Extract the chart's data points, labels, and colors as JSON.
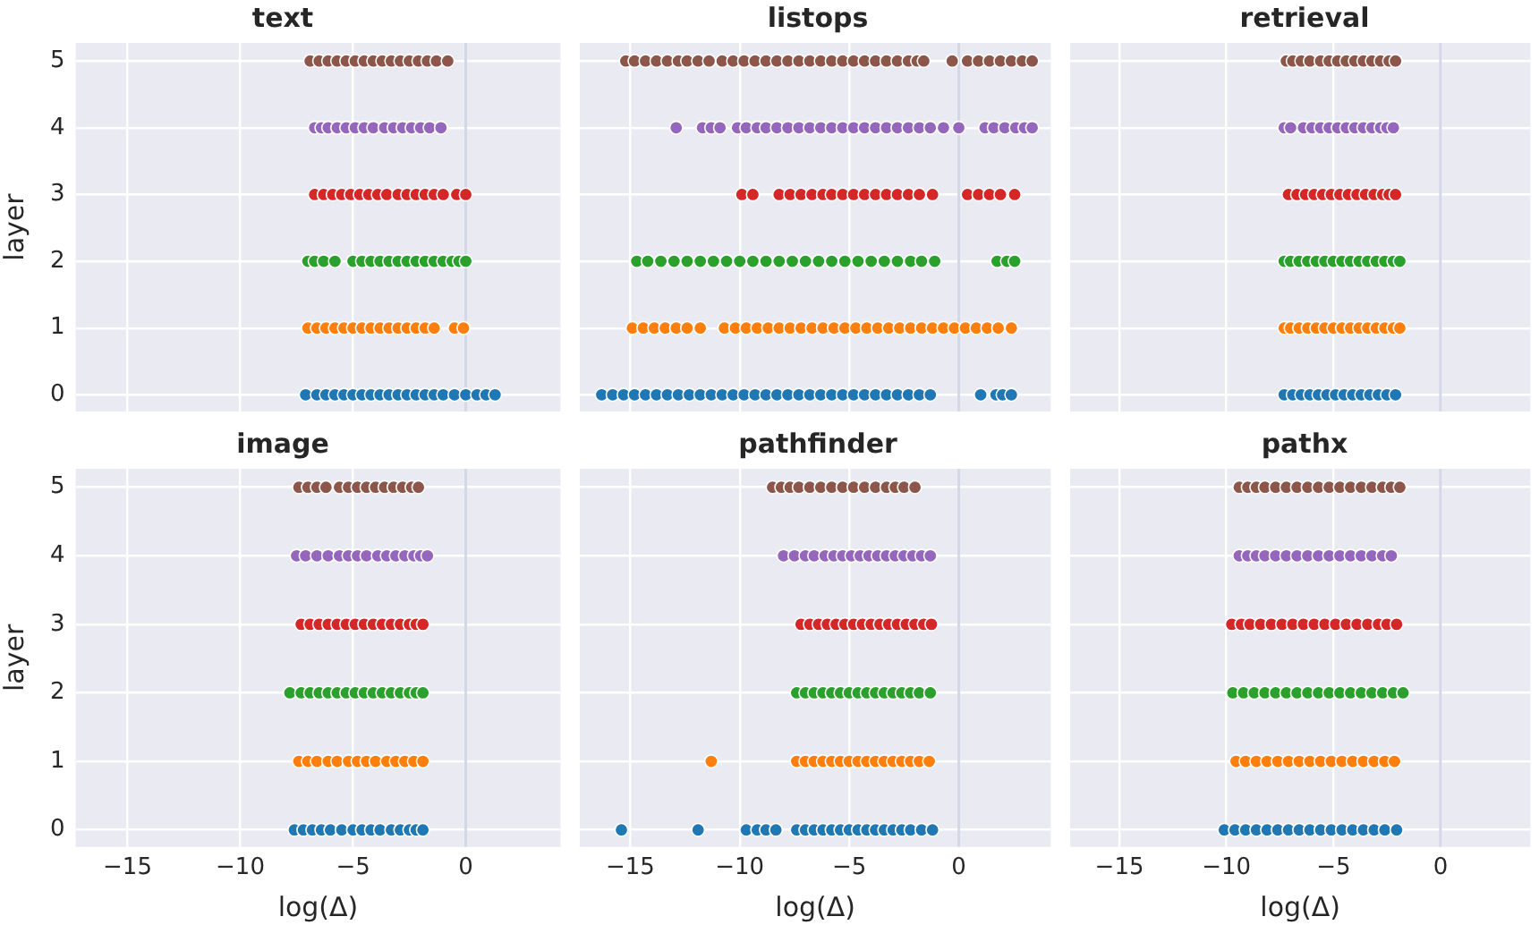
{
  "chart_data": [
    {
      "type": "scatter",
      "title": "text",
      "ylabel": "layer",
      "xlim": [
        -17.3,
        4.2
      ],
      "xticks": [
        -15,
        -10,
        -5,
        0
      ],
      "ylim": [
        -0.25,
        5.27
      ],
      "yticks": [
        0,
        1,
        2,
        3,
        4,
        5
      ],
      "tick_labels": "y",
      "grid": true,
      "marker": "circle",
      "ref_lines": [
        {
          "axis": "x",
          "value": 0,
          "color": "#d3d8e6"
        }
      ],
      "series": [
        {
          "color": "#1f77b4",
          "x": [
            -7.1,
            -6.6,
            -6.2,
            -5.8,
            -5.4,
            -5.0,
            -4.6,
            -4.2,
            -3.8,
            -3.4,
            -3.0,
            -2.6,
            -2.2,
            -1.8,
            -1.4,
            -1.0,
            -0.5,
            0.0,
            0.5,
            0.9,
            1.3
          ],
          "values": [
            0,
            0,
            0,
            0,
            0,
            0,
            0,
            0,
            0,
            0,
            0,
            0,
            0,
            0,
            0,
            0,
            0,
            0,
            0,
            0,
            0
          ]
        },
        {
          "color": "#ff7f0e",
          "x": [
            -7.0,
            -6.6,
            -6.2,
            -5.8,
            -5.4,
            -5.0,
            -4.6,
            -4.2,
            -3.8,
            -3.4,
            -3.0,
            -2.6,
            -2.2,
            -1.8,
            -1.4,
            -0.5,
            -0.1
          ],
          "values": [
            1,
            1,
            1,
            1,
            1,
            1,
            1,
            1,
            1,
            1,
            1,
            1,
            1,
            1,
            1,
            1,
            1
          ]
        },
        {
          "color": "#2ca02c",
          "x": [
            -7.0,
            -6.7,
            -6.3,
            -5.8,
            -5.0,
            -4.6,
            -4.2,
            -3.8,
            -3.4,
            -3.0,
            -2.6,
            -2.2,
            -1.8,
            -1.4,
            -1.0,
            -0.6,
            -0.3,
            0.0
          ],
          "values": [
            2,
            2,
            2,
            2,
            2,
            2,
            2,
            2,
            2,
            2,
            2,
            2,
            2,
            2,
            2,
            2,
            2,
            2
          ]
        },
        {
          "color": "#d62728",
          "x": [
            -6.7,
            -6.3,
            -5.9,
            -5.5,
            -5.1,
            -4.7,
            -4.3,
            -3.9,
            -3.5,
            -3.0,
            -2.6,
            -2.2,
            -1.8,
            -1.4,
            -1.0,
            -0.4,
            0.0
          ],
          "values": [
            3,
            3,
            3,
            3,
            3,
            3,
            3,
            3,
            3,
            3,
            3,
            3,
            3,
            3,
            3,
            3,
            3
          ]
        },
        {
          "color": "#9467bd",
          "x": [
            -6.7,
            -6.4,
            -6.1,
            -5.7,
            -5.3,
            -4.9,
            -4.5,
            -4.1,
            -3.6,
            -3.2,
            -2.8,
            -2.4,
            -2.0,
            -1.6,
            -1.1
          ],
          "values": [
            4,
            4,
            4,
            4,
            4,
            4,
            4,
            4,
            4,
            4,
            4,
            4,
            4,
            4,
            4
          ]
        },
        {
          "color": "#8c564b",
          "x": [
            -6.9,
            -6.5,
            -6.1,
            -5.7,
            -5.3,
            -4.9,
            -4.5,
            -4.1,
            -3.7,
            -3.3,
            -2.9,
            -2.5,
            -2.1,
            -1.7,
            -1.3,
            -0.8
          ],
          "values": [
            5,
            5,
            5,
            5,
            5,
            5,
            5,
            5,
            5,
            5,
            5,
            5,
            5,
            5,
            5,
            5
          ]
        }
      ]
    },
    {
      "type": "scatter",
      "title": "listops",
      "xlim": [
        -17.3,
        4.2
      ],
      "xticks": [
        -15,
        -10,
        -5,
        0
      ],
      "ylim": [
        -0.25,
        5.27
      ],
      "yticks": [
        0,
        1,
        2,
        3,
        4,
        5
      ],
      "tick_labels": false,
      "grid": true,
      "marker": "circle",
      "ref_lines": [
        {
          "axis": "x",
          "value": 0,
          "color": "#d3d8e6"
        }
      ],
      "series": [
        {
          "color": "#1f77b4",
          "x": [
            -16.3,
            -15.8,
            -15.3,
            -14.8,
            -14.3,
            -13.8,
            -13.3,
            -12.8,
            -12.3,
            -11.8,
            -11.3,
            -10.8,
            -10.3,
            -9.8,
            -9.3,
            -8.8,
            -8.3,
            -7.8,
            -7.3,
            -6.8,
            -6.3,
            -5.8,
            -5.3,
            -4.8,
            -4.3,
            -3.8,
            -3.3,
            -2.8,
            -2.3,
            -1.8,
            -1.3,
            1.0,
            1.7,
            2.0,
            2.4
          ],
          "values": [
            0,
            0,
            0,
            0,
            0,
            0,
            0,
            0,
            0,
            0,
            0,
            0,
            0,
            0,
            0,
            0,
            0,
            0,
            0,
            0,
            0,
            0,
            0,
            0,
            0,
            0,
            0,
            0,
            0,
            0,
            0,
            0,
            0,
            0,
            0
          ]
        },
        {
          "color": "#ff7f0e",
          "x": [
            -14.9,
            -14.4,
            -13.9,
            -13.4,
            -12.9,
            -12.4,
            -11.8,
            -10.7,
            -10.2,
            -9.7,
            -9.2,
            -8.7,
            -8.2,
            -7.7,
            -7.2,
            -6.7,
            -6.2,
            -5.7,
            -5.2,
            -4.7,
            -4.2,
            -3.7,
            -3.2,
            -2.7,
            -2.2,
            -1.7,
            -1.2,
            -0.7,
            -0.2,
            0.3,
            0.8,
            1.3,
            1.8,
            2.4
          ],
          "values": [
            1,
            1,
            1,
            1,
            1,
            1,
            1,
            1,
            1,
            1,
            1,
            1,
            1,
            1,
            1,
            1,
            1,
            1,
            1,
            1,
            1,
            1,
            1,
            1,
            1,
            1,
            1,
            1,
            1,
            1,
            1,
            1,
            1,
            1
          ]
        },
        {
          "color": "#2ca02c",
          "x": [
            -14.7,
            -14.2,
            -13.6,
            -13.0,
            -12.4,
            -11.8,
            -11.2,
            -10.6,
            -10.0,
            -9.4,
            -8.8,
            -8.2,
            -7.6,
            -7.0,
            -6.4,
            -5.8,
            -5.2,
            -4.6,
            -4.0,
            -3.4,
            -2.8,
            -2.2,
            -1.7,
            -1.1,
            1.75,
            2.2,
            2.55
          ],
          "values": [
            2,
            2,
            2,
            2,
            2,
            2,
            2,
            2,
            2,
            2,
            2,
            2,
            2,
            2,
            2,
            2,
            2,
            2,
            2,
            2,
            2,
            2,
            2,
            2,
            2,
            2,
            2
          ]
        },
        {
          "color": "#d62728",
          "x": [
            -9.9,
            -9.4,
            -8.2,
            -7.7,
            -7.2,
            -6.7,
            -6.2,
            -5.8,
            -5.3,
            -4.8,
            -4.3,
            -3.8,
            -3.3,
            -2.8,
            -2.3,
            -1.8,
            -1.2,
            0.4,
            0.9,
            1.4,
            1.9,
            2.55
          ],
          "values": [
            3,
            3,
            3,
            3,
            3,
            3,
            3,
            3,
            3,
            3,
            3,
            3,
            3,
            3,
            3,
            3,
            3,
            3,
            3,
            3,
            3,
            3
          ]
        },
        {
          "color": "#9467bd",
          "x": [
            -12.9,
            -11.7,
            -11.3,
            -10.9,
            -10.1,
            -9.7,
            -9.2,
            -8.8,
            -8.3,
            -7.8,
            -7.3,
            -6.8,
            -6.3,
            -5.8,
            -5.3,
            -4.8,
            -4.3,
            -3.8,
            -3.3,
            -2.8,
            -2.3,
            -1.8,
            -1.3,
            -0.7,
            0.0,
            1.2,
            1.6,
            2.1,
            2.6,
            3.0,
            3.35
          ],
          "values": [
            4,
            4,
            4,
            4,
            4,
            4,
            4,
            4,
            4,
            4,
            4,
            4,
            4,
            4,
            4,
            4,
            4,
            4,
            4,
            4,
            4,
            4,
            4,
            4,
            4,
            4,
            4,
            4,
            4,
            4,
            4
          ]
        },
        {
          "color": "#8c564b",
          "x": [
            -15.2,
            -14.8,
            -14.3,
            -13.8,
            -13.3,
            -12.8,
            -12.4,
            -11.9,
            -11.4,
            -10.8,
            -10.3,
            -9.8,
            -9.3,
            -8.8,
            -8.3,
            -7.8,
            -7.3,
            -6.8,
            -6.3,
            -5.8,
            -5.3,
            -4.8,
            -4.3,
            -3.8,
            -3.3,
            -2.8,
            -2.3,
            -1.9,
            -1.6,
            -0.3,
            0.4,
            0.9,
            1.4,
            1.9,
            2.4,
            2.9,
            3.35
          ],
          "values": [
            5,
            5,
            5,
            5,
            5,
            5,
            5,
            5,
            5,
            5,
            5,
            5,
            5,
            5,
            5,
            5,
            5,
            5,
            5,
            5,
            5,
            5,
            5,
            5,
            5,
            5,
            5,
            5,
            5,
            5,
            5,
            5,
            5,
            5,
            5,
            5,
            5
          ]
        }
      ]
    },
    {
      "type": "scatter",
      "title": "retrieval",
      "xlim": [
        -17.3,
        4.2
      ],
      "xticks": [
        -15,
        -10,
        -5,
        0
      ],
      "ylim": [
        -0.25,
        5.27
      ],
      "yticks": [
        0,
        1,
        2,
        3,
        4,
        5
      ],
      "tick_labels": false,
      "grid": true,
      "marker": "circle",
      "ref_lines": [
        {
          "axis": "x",
          "value": 0,
          "color": "#d3d8e6"
        }
      ],
      "series": [
        {
          "color": "#1f77b4",
          "x": [
            -7.3,
            -6.9,
            -6.5,
            -6.1,
            -5.7,
            -5.3,
            -4.9,
            -4.5,
            -4.1,
            -3.7,
            -3.3,
            -2.9,
            -2.5,
            -2.1
          ],
          "values": [
            0,
            0,
            0,
            0,
            0,
            0,
            0,
            0,
            0,
            0,
            0,
            0,
            0,
            0
          ]
        },
        {
          "color": "#ff7f0e",
          "x": [
            -7.3,
            -7.0,
            -6.6,
            -6.2,
            -5.8,
            -5.4,
            -5.0,
            -4.6,
            -4.2,
            -3.8,
            -3.4,
            -3.0,
            -2.6,
            -2.2,
            -1.9
          ],
          "values": [
            1,
            1,
            1,
            1,
            1,
            1,
            1,
            1,
            1,
            1,
            1,
            1,
            1,
            1,
            1
          ]
        },
        {
          "color": "#2ca02c",
          "x": [
            -7.3,
            -7.0,
            -6.6,
            -6.2,
            -5.8,
            -5.4,
            -5.0,
            -4.6,
            -4.2,
            -3.8,
            -3.4,
            -3.0,
            -2.6,
            -2.2,
            -1.9
          ],
          "values": [
            2,
            2,
            2,
            2,
            2,
            2,
            2,
            2,
            2,
            2,
            2,
            2,
            2,
            2,
            2
          ]
        },
        {
          "color": "#d62728",
          "x": [
            -7.1,
            -6.7,
            -6.3,
            -5.9,
            -5.5,
            -5.1,
            -4.7,
            -4.3,
            -3.9,
            -3.5,
            -3.1,
            -2.7,
            -2.4,
            -2.1
          ],
          "values": [
            3,
            3,
            3,
            3,
            3,
            3,
            3,
            3,
            3,
            3,
            3,
            3,
            3,
            3
          ]
        },
        {
          "color": "#9467bd",
          "x": [
            -7.3,
            -7.0,
            -6.4,
            -6.0,
            -5.6,
            -5.2,
            -4.8,
            -4.4,
            -4.0,
            -3.6,
            -3.2,
            -2.8,
            -2.5,
            -2.2
          ],
          "values": [
            4,
            4,
            4,
            4,
            4,
            4,
            4,
            4,
            4,
            4,
            4,
            4,
            4,
            4
          ]
        },
        {
          "color": "#8c564b",
          "x": [
            -7.2,
            -6.9,
            -6.5,
            -6.1,
            -5.6,
            -5.2,
            -4.8,
            -4.4,
            -4.0,
            -3.6,
            -3.2,
            -2.8,
            -2.4,
            -2.1
          ],
          "values": [
            5,
            5,
            5,
            5,
            5,
            5,
            5,
            5,
            5,
            5,
            5,
            5,
            5,
            5
          ]
        }
      ]
    },
    {
      "type": "scatter",
      "title": "image",
      "xlabel": "log(Δ)",
      "ylabel": "layer",
      "xlim": [
        -17.3,
        4.2
      ],
      "xticks": [
        -15,
        -10,
        -5,
        0
      ],
      "ylim": [
        -0.25,
        5.27
      ],
      "yticks": [
        0,
        1,
        2,
        3,
        4,
        5
      ],
      "grid": true,
      "marker": "circle",
      "ref_lines": [
        {
          "axis": "x",
          "value": 0,
          "color": "#d3d8e6"
        }
      ],
      "series": [
        {
          "color": "#1f77b4",
          "x": [
            -7.6,
            -7.2,
            -6.8,
            -6.4,
            -6.0,
            -5.5,
            -5.0,
            -4.6,
            -4.2,
            -3.8,
            -3.3,
            -2.9,
            -2.5,
            -2.2,
            -1.9
          ],
          "values": [
            0,
            0,
            0,
            0,
            0,
            0,
            0,
            0,
            0,
            0,
            0,
            0,
            0,
            0,
            0
          ]
        },
        {
          "color": "#ff7f0e",
          "x": [
            -7.4,
            -7.0,
            -6.6,
            -6.1,
            -5.7,
            -5.2,
            -4.8,
            -4.4,
            -4.0,
            -3.5,
            -3.1,
            -2.7,
            -2.3,
            -1.9
          ],
          "values": [
            1,
            1,
            1,
            1,
            1,
            1,
            1,
            1,
            1,
            1,
            1,
            1,
            1,
            1
          ]
        },
        {
          "color": "#2ca02c",
          "x": [
            -7.8,
            -7.3,
            -6.9,
            -6.5,
            -6.1,
            -5.7,
            -5.3,
            -4.9,
            -4.5,
            -4.1,
            -3.7,
            -3.3,
            -2.9,
            -2.5,
            -2.2,
            -1.9
          ],
          "values": [
            2,
            2,
            2,
            2,
            2,
            2,
            2,
            2,
            2,
            2,
            2,
            2,
            2,
            2,
            2,
            2
          ]
        },
        {
          "color": "#d62728",
          "x": [
            -7.3,
            -6.9,
            -6.5,
            -6.1,
            -5.7,
            -5.3,
            -4.9,
            -4.5,
            -4.1,
            -3.7,
            -3.3,
            -2.9,
            -2.5,
            -2.2,
            -1.9
          ],
          "values": [
            3,
            3,
            3,
            3,
            3,
            3,
            3,
            3,
            3,
            3,
            3,
            3,
            3,
            3,
            3
          ]
        },
        {
          "color": "#9467bd",
          "x": [
            -7.5,
            -7.1,
            -6.6,
            -6.1,
            -5.6,
            -5.2,
            -4.8,
            -4.4,
            -3.9,
            -3.5,
            -3.1,
            -2.7,
            -2.3,
            -2.0,
            -1.7
          ],
          "values": [
            4,
            4,
            4,
            4,
            4,
            4,
            4,
            4,
            4,
            4,
            4,
            4,
            4,
            4,
            4
          ]
        },
        {
          "color": "#8c564b",
          "x": [
            -7.4,
            -7.0,
            -6.6,
            -6.2,
            -5.6,
            -5.2,
            -4.8,
            -4.4,
            -4.0,
            -3.6,
            -3.2,
            -2.8,
            -2.4,
            -2.1
          ],
          "values": [
            5,
            5,
            5,
            5,
            5,
            5,
            5,
            5,
            5,
            5,
            5,
            5,
            5,
            5
          ]
        }
      ]
    },
    {
      "type": "scatter",
      "title": "pathfinder",
      "xlabel": "log(Δ)",
      "xlim": [
        -17.3,
        4.2
      ],
      "xticks": [
        -15,
        -10,
        -5,
        0
      ],
      "ylim": [
        -0.25,
        5.27
      ],
      "yticks": [
        0,
        1,
        2,
        3,
        4,
        5
      ],
      "tick_labels": "x",
      "grid": true,
      "marker": "circle",
      "ref_lines": [
        {
          "axis": "x",
          "value": 0,
          "color": "#d3d8e6"
        }
      ],
      "series": [
        {
          "color": "#1f77b4",
          "x": [
            -15.4,
            -11.9,
            -9.7,
            -9.2,
            -8.8,
            -8.35,
            -7.4,
            -7.0,
            -6.6,
            -6.2,
            -5.8,
            -5.4,
            -5.0,
            -4.6,
            -4.2,
            -3.8,
            -3.4,
            -3.0,
            -2.6,
            -2.2,
            -1.7,
            -1.2
          ],
          "values": [
            0,
            0,
            0,
            0,
            0,
            0,
            0,
            0,
            0,
            0,
            0,
            0,
            0,
            0,
            0,
            0,
            0,
            0,
            0,
            0,
            0,
            0
          ]
        },
        {
          "color": "#ff7f0e",
          "x": [
            -11.3,
            -7.4,
            -7.0,
            -6.6,
            -6.2,
            -5.8,
            -5.4,
            -5.0,
            -4.6,
            -4.2,
            -3.8,
            -3.4,
            -3.0,
            -2.6,
            -2.2,
            -1.8,
            -1.35
          ],
          "values": [
            1,
            1,
            1,
            1,
            1,
            1,
            1,
            1,
            1,
            1,
            1,
            1,
            1,
            1,
            1,
            1,
            1
          ]
        },
        {
          "color": "#2ca02c",
          "x": [
            -7.4,
            -7.0,
            -6.6,
            -6.2,
            -5.8,
            -5.4,
            -5.0,
            -4.6,
            -4.2,
            -3.8,
            -3.4,
            -3.0,
            -2.6,
            -2.2,
            -1.8,
            -1.3
          ],
          "values": [
            2,
            2,
            2,
            2,
            2,
            2,
            2,
            2,
            2,
            2,
            2,
            2,
            2,
            2,
            2,
            2
          ]
        },
        {
          "color": "#d62728",
          "x": [
            -7.2,
            -6.8,
            -6.4,
            -6.0,
            -5.6,
            -5.2,
            -4.8,
            -4.4,
            -4.0,
            -3.6,
            -3.2,
            -2.8,
            -2.4,
            -2.0,
            -1.6,
            -1.25
          ],
          "values": [
            3,
            3,
            3,
            3,
            3,
            3,
            3,
            3,
            3,
            3,
            3,
            3,
            3,
            3,
            3,
            3
          ]
        },
        {
          "color": "#9467bd",
          "x": [
            -8.0,
            -7.5,
            -7.0,
            -6.6,
            -6.1,
            -5.7,
            -5.3,
            -4.9,
            -4.5,
            -4.1,
            -3.7,
            -3.3,
            -2.9,
            -2.5,
            -2.1,
            -1.7,
            -1.3
          ],
          "values": [
            4,
            4,
            4,
            4,
            4,
            4,
            4,
            4,
            4,
            4,
            4,
            4,
            4,
            4,
            4,
            4,
            4
          ]
        },
        {
          "color": "#8c564b",
          "x": [
            -8.5,
            -8.1,
            -7.7,
            -7.3,
            -6.8,
            -6.3,
            -5.8,
            -5.3,
            -4.8,
            -4.3,
            -3.8,
            -3.3,
            -2.9,
            -2.5,
            -2.0
          ],
          "values": [
            5,
            5,
            5,
            5,
            5,
            5,
            5,
            5,
            5,
            5,
            5,
            5,
            5,
            5,
            5
          ]
        }
      ]
    },
    {
      "type": "scatter",
      "title": "pathx",
      "xlabel": "log(Δ)",
      "xlim": [
        -17.3,
        4.2
      ],
      "xticks": [
        -15,
        -10,
        -5,
        0
      ],
      "ylim": [
        -0.25,
        5.27
      ],
      "yticks": [
        0,
        1,
        2,
        3,
        4,
        5
      ],
      "tick_labels": "x",
      "grid": true,
      "marker": "circle",
      "ref_lines": [
        {
          "axis": "x",
          "value": 0,
          "color": "#d3d8e6"
        }
      ],
      "series": [
        {
          "color": "#1f77b4",
          "x": [
            -10.1,
            -9.6,
            -9.1,
            -8.6,
            -8.1,
            -7.6,
            -7.1,
            -6.6,
            -6.1,
            -5.6,
            -5.1,
            -4.6,
            -4.1,
            -3.6,
            -3.1,
            -2.6,
            -2.05
          ],
          "values": [
            0,
            0,
            0,
            0,
            0,
            0,
            0,
            0,
            0,
            0,
            0,
            0,
            0,
            0,
            0,
            0,
            0
          ]
        },
        {
          "color": "#ff7f0e",
          "x": [
            -9.55,
            -9.1,
            -8.6,
            -8.1,
            -7.6,
            -7.1,
            -6.6,
            -6.1,
            -5.6,
            -5.1,
            -4.6,
            -4.1,
            -3.6,
            -3.1,
            -2.6,
            -2.15
          ],
          "values": [
            1,
            1,
            1,
            1,
            1,
            1,
            1,
            1,
            1,
            1,
            1,
            1,
            1,
            1,
            1,
            1
          ]
        },
        {
          "color": "#2ca02c",
          "x": [
            -9.7,
            -9.2,
            -8.7,
            -8.2,
            -7.7,
            -7.2,
            -6.7,
            -6.2,
            -5.7,
            -5.2,
            -4.7,
            -4.2,
            -3.7,
            -3.2,
            -2.7,
            -2.2,
            -1.75
          ],
          "values": [
            2,
            2,
            2,
            2,
            2,
            2,
            2,
            2,
            2,
            2,
            2,
            2,
            2,
            2,
            2,
            2,
            2
          ]
        },
        {
          "color": "#d62728",
          "x": [
            -9.75,
            -9.3,
            -8.9,
            -8.4,
            -7.9,
            -7.4,
            -6.9,
            -6.4,
            -5.9,
            -5.4,
            -4.9,
            -4.4,
            -3.9,
            -3.4,
            -2.9,
            -2.5,
            -2.05
          ],
          "values": [
            3,
            3,
            3,
            3,
            3,
            3,
            3,
            3,
            3,
            3,
            3,
            3,
            3,
            3,
            3,
            3,
            3
          ]
        },
        {
          "color": "#9467bd",
          "x": [
            -9.4,
            -9.0,
            -8.6,
            -8.2,
            -7.7,
            -7.2,
            -6.7,
            -6.2,
            -5.7,
            -5.2,
            -4.7,
            -4.2,
            -3.7,
            -3.2,
            -2.7,
            -2.3
          ],
          "values": [
            4,
            4,
            4,
            4,
            4,
            4,
            4,
            4,
            4,
            4,
            4,
            4,
            4,
            4,
            4,
            4
          ]
        },
        {
          "color": "#8c564b",
          "x": [
            -9.4,
            -9.0,
            -8.6,
            -8.2,
            -7.7,
            -7.2,
            -6.7,
            -6.2,
            -5.7,
            -5.2,
            -4.7,
            -4.2,
            -3.7,
            -3.2,
            -2.7,
            -2.3,
            -1.9
          ],
          "values": [
            5,
            5,
            5,
            5,
            5,
            5,
            5,
            5,
            5,
            5,
            5,
            5,
            5,
            5,
            5,
            5,
            5
          ]
        }
      ]
    }
  ]
}
